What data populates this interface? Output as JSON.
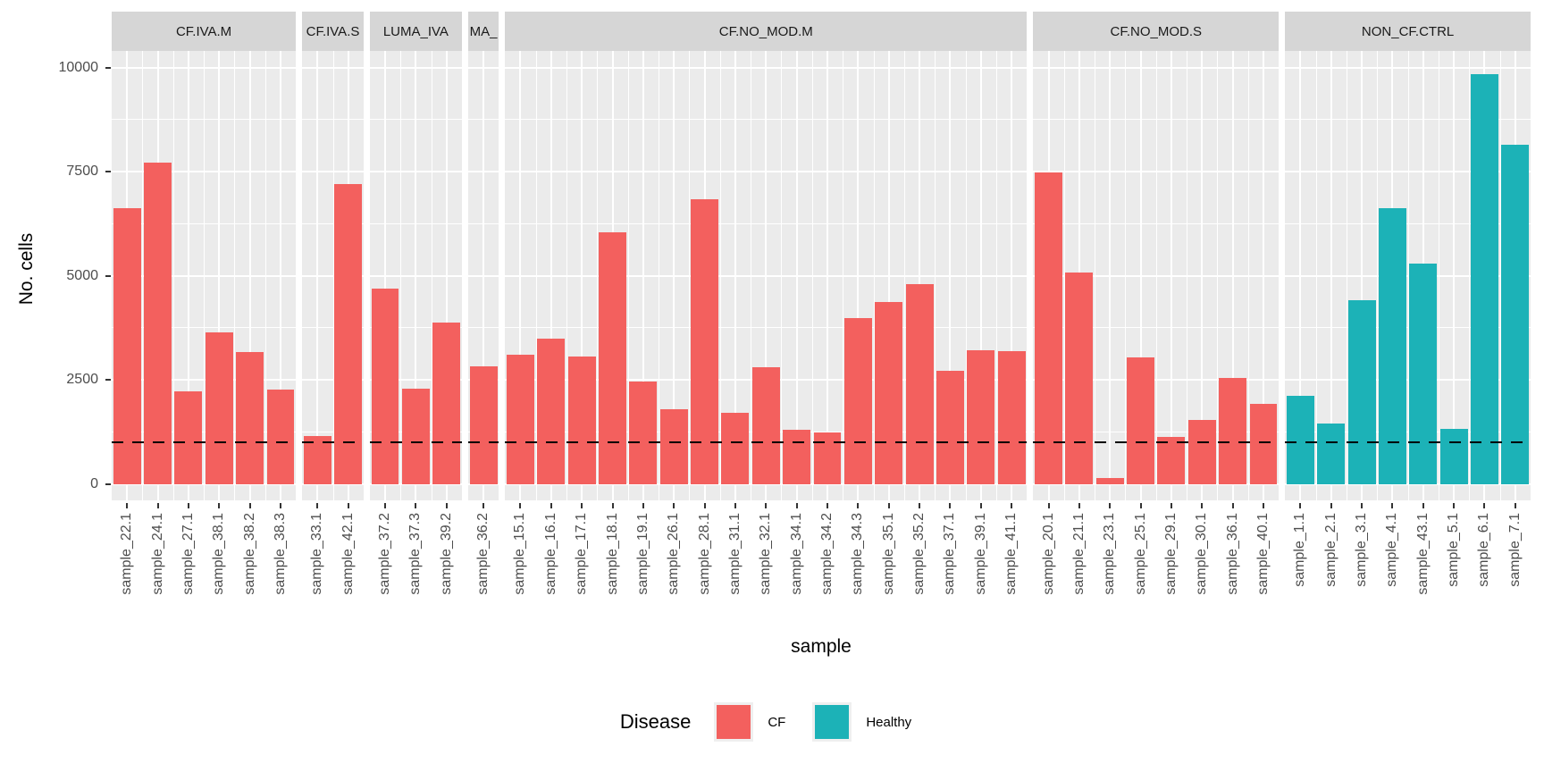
{
  "chart_data": {
    "type": "bar",
    "title": "",
    "xlabel": "sample",
    "ylabel": "No. cells",
    "ylim": [
      0,
      10400
    ],
    "yticks": [
      0,
      2500,
      5000,
      7500,
      10000
    ],
    "yticks_minor": [
      1250,
      3750,
      6250,
      8750
    ],
    "grid": true,
    "panel_background": "#EBEBEB",
    "strip_background": "#D6D6D6",
    "hline": {
      "value": 1000,
      "style": "dashed",
      "color": "#000000"
    },
    "legend": {
      "title": "Disease",
      "position": "bottom",
      "entries": [
        {
          "label": "CF",
          "color": "#F3605E"
        },
        {
          "label": "Healthy",
          "color": "#1CB2B7"
        }
      ]
    },
    "facets": [
      {
        "label": "CF.IVA.M",
        "disease": "CF",
        "samples": [
          "sample_22.1",
          "sample_24.1",
          "sample_27.1",
          "sample_38.1",
          "sample_38.2",
          "sample_38.3"
        ],
        "values": [
          6620,
          7710,
          2220,
          3640,
          3170,
          2260
        ]
      },
      {
        "label": "CF.IVA.S",
        "disease": "CF",
        "samples": [
          "sample_33.1",
          "sample_42.1"
        ],
        "values": [
          1150,
          7200
        ]
      },
      {
        "label": "LUMA_IVA",
        "disease": "CF",
        "samples": [
          "sample_37.2",
          "sample_37.3",
          "sample_39.2"
        ],
        "values": [
          4690,
          2290,
          3870
        ]
      },
      {
        "label": "MA_",
        "disease": "CF",
        "samples": [
          "sample_36.2"
        ],
        "values": [
          2820
        ]
      },
      {
        "label": "CF.NO_MOD.M",
        "disease": "CF",
        "samples": [
          "sample_15.1",
          "sample_16.1",
          "sample_17.1",
          "sample_18.1",
          "sample_19.1",
          "sample_26.1",
          "sample_28.1",
          "sample_31.1",
          "sample_32.1",
          "sample_34.1",
          "sample_34.2",
          "sample_34.3",
          "sample_35.1",
          "sample_35.2",
          "sample_37.1",
          "sample_39.1",
          "sample_41.1"
        ],
        "values": [
          3100,
          3490,
          3060,
          6040,
          2460,
          1790,
          6830,
          1710,
          2800,
          1300,
          1230,
          3980,
          4370,
          4800,
          2720,
          3210,
          3190
        ]
      },
      {
        "label": "CF.NO_MOD.S",
        "disease": "CF",
        "samples": [
          "sample_20.1",
          "sample_21.1",
          "sample_23.1",
          "sample_25.1",
          "sample_29.1",
          "sample_30.1",
          "sample_36.1",
          "sample_40.1"
        ],
        "values": [
          7480,
          5070,
          140,
          3040,
          1130,
          1530,
          2540,
          1920
        ]
      },
      {
        "label": "NON_CF.CTRL",
        "disease": "Healthy",
        "samples": [
          "sample_1.1",
          "sample_2.1",
          "sample_3.1",
          "sample_4.1",
          "sample_43.1",
          "sample_5.1",
          "sample_6.1",
          "sample_7.1"
        ],
        "values": [
          2110,
          1450,
          4410,
          6620,
          5290,
          1320,
          9840,
          8140
        ]
      }
    ]
  }
}
